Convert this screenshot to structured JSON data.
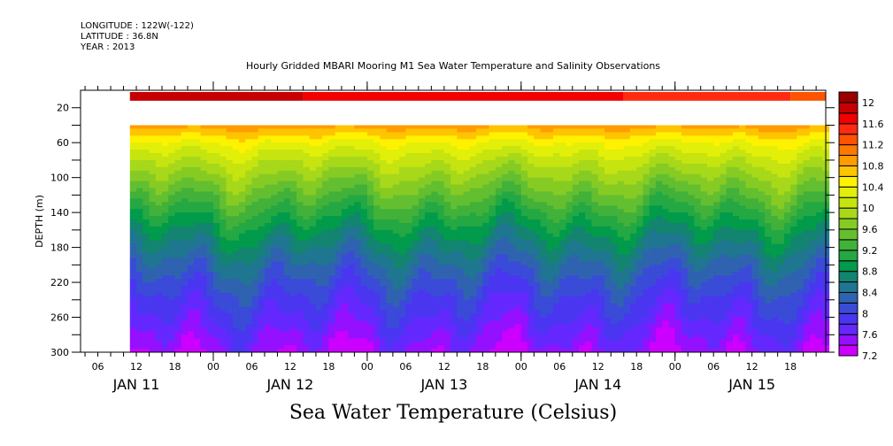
{
  "header": {
    "longitude": "LONGITUDE : 122W(-122)",
    "latitude": "LATITUDE : 36.8N",
    "year": "YEAR : 2013"
  },
  "chart_data": {
    "type": "heatmap",
    "title": "Hourly Gridded MBARI Mooring M1 Sea Water Temperature and Salinity Observations",
    "xlabel": "",
    "ylabel": "DEPTH (m)",
    "colorbar_label": "Sea Water Temperature (Celsius)",
    "x_axis": {
      "start_hours_from_jan11_00": 3.3,
      "end_hours_from_jan11_00": 119.5,
      "data_start_hours_from_jan11_00": 11,
      "hour_tick_labels": [
        "06",
        "12",
        "18",
        "00",
        "06",
        "12",
        "18",
        "00",
        "06",
        "12",
        "18",
        "00",
        "06",
        "12",
        "18",
        "00",
        "06",
        "12",
        "18"
      ],
      "hour_tick_hours": [
        6,
        12,
        18,
        24,
        30,
        36,
        42,
        48,
        54,
        60,
        66,
        72,
        78,
        84,
        90,
        96,
        102,
        108,
        114
      ],
      "day_labels": [
        "JAN 11",
        "JAN 12",
        "JAN 13",
        "JAN 14",
        "JAN 15"
      ],
      "day_label_hours": [
        12,
        36,
        60,
        84,
        108
      ]
    },
    "y_axis": {
      "range": [
        0,
        300
      ],
      "inverted": true,
      "tick_labels": [
        "20",
        "60",
        "100",
        "140",
        "180",
        "220",
        "260",
        "300"
      ],
      "tick_values": [
        20,
        60,
        100,
        140,
        180,
        220,
        260,
        300
      ],
      "minor_tick_values": [
        40,
        80,
        120,
        160,
        200,
        240,
        280
      ]
    },
    "colorbar": {
      "levels": [
        7.2,
        7.4,
        7.6,
        7.8,
        8.0,
        8.2,
        8.4,
        8.6,
        8.8,
        9.0,
        9.2,
        9.4,
        9.6,
        9.8,
        10.0,
        10.2,
        10.4,
        10.6,
        10.8,
        11.0,
        11.2,
        11.4,
        11.6,
        11.8,
        12.0,
        12.2
      ],
      "tick_labels": [
        "7.2",
        "7.6",
        "8",
        "8.4",
        "8.8",
        "9.2",
        "9.6",
        "10",
        "10.4",
        "10.8",
        "11.2",
        "11.6",
        "12"
      ],
      "tick_values": [
        7.2,
        7.6,
        8.0,
        8.4,
        8.8,
        9.2,
        9.6,
        10.0,
        10.4,
        10.8,
        11.2,
        11.6,
        12.0
      ],
      "colors": [
        "#cc00ff",
        "#9410ff",
        "#6428ff",
        "#4a36f0",
        "#3a4bd8",
        "#2f63b0",
        "#1f7690",
        "#138470",
        "#019b4b",
        "#24a843",
        "#42b13a",
        "#63bf30",
        "#86cb24",
        "#a7d81a",
        "#c6e410",
        "#e2ef08",
        "#fff200",
        "#ffc400",
        "#ff9d00",
        "#ff7800",
        "#ff5300",
        "#ff2a10",
        "#f20000",
        "#c60000",
        "#980000"
      ]
    },
    "surface_band": {
      "depth_range_m": [
        2,
        12
      ],
      "segments": [
        {
          "from_hour": 11,
          "to_hour": 38,
          "value": 11.9
        },
        {
          "from_hour": 38,
          "to_hour": 88,
          "value": 11.7
        },
        {
          "from_hour": 88,
          "to_hour": 114,
          "value": 11.5
        },
        {
          "from_hour": 114,
          "to_hour": 119.5,
          "value": 11.3
        }
      ]
    },
    "profile_data": {
      "depth_range_m": [
        40,
        300
      ],
      "description": "Temperature decreases with depth: ~11.0-10.4 C near 40 m, ~10.0 C near 80 m, ~9.0 C near 140 m, ~8.5 C near 180 m, ~8.0 C near 240 m, ~7.4-7.6 C near 300 m",
      "reference_depths_m": [
        40,
        60,
        80,
        100,
        120,
        140,
        160,
        180,
        200,
        220,
        240,
        260,
        280,
        300
      ],
      "reference_temps_c": [
        10.9,
        10.4,
        10.05,
        9.75,
        9.45,
        9.15,
        8.85,
        8.6,
        8.35,
        8.15,
        7.95,
        7.8,
        7.62,
        7.45
      ]
    }
  }
}
